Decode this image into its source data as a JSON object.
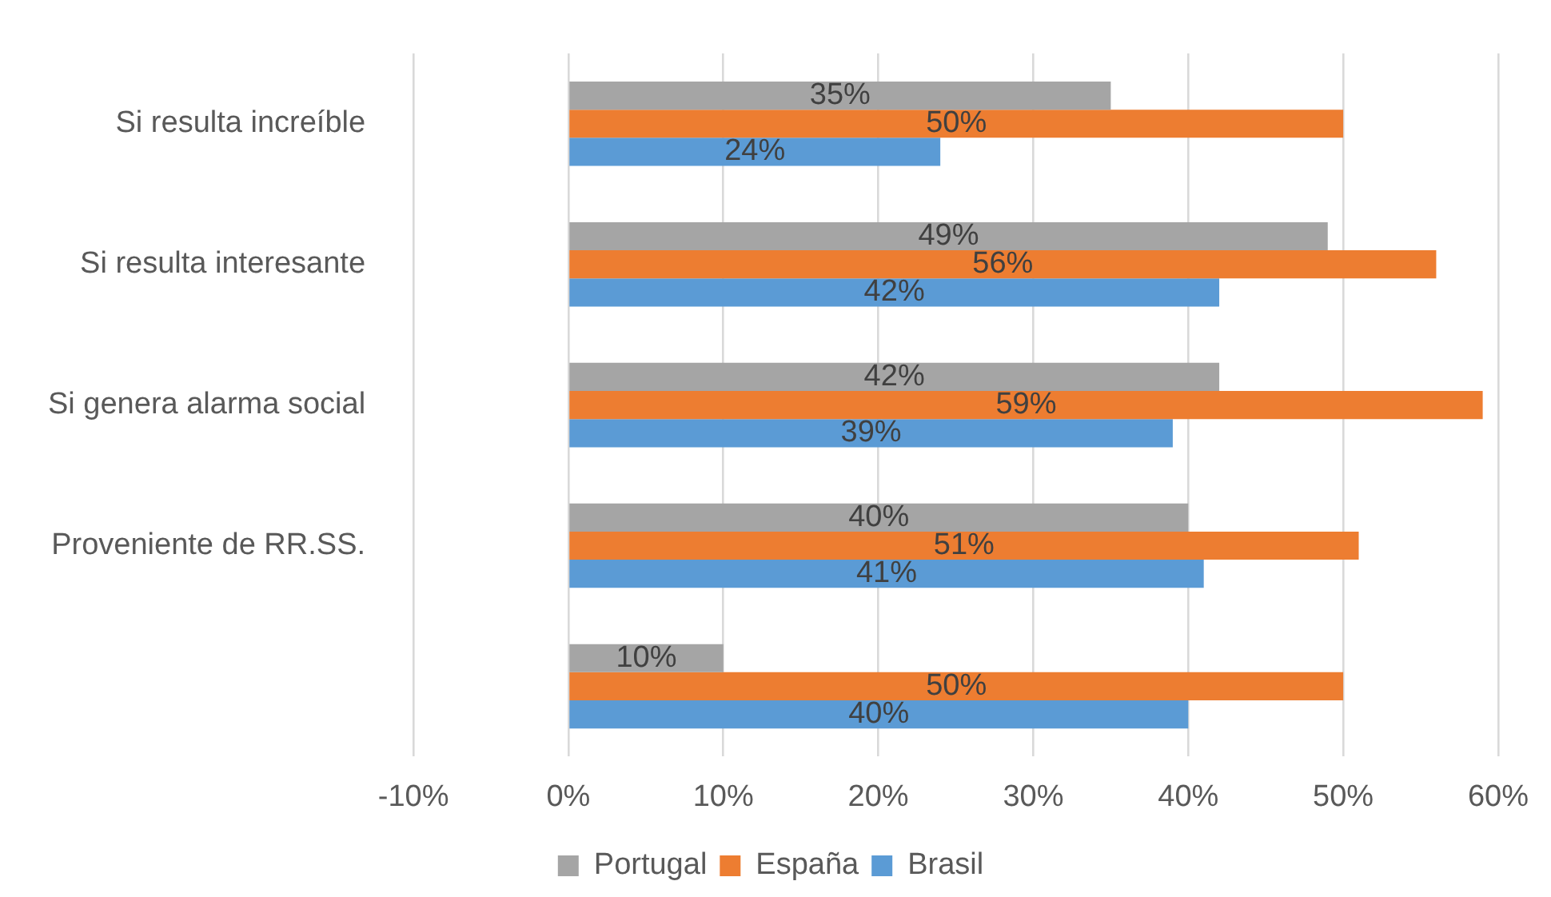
{
  "chart_data": {
    "type": "bar",
    "orientation": "horizontal",
    "categories": [
      "Si resulta increíble",
      "Si resulta interesante",
      "Si genera alarma social",
      "Proveniente de RR.SS.",
      null
    ],
    "series": [
      {
        "name": "Portugal",
        "color": "#a5a5a5",
        "values": [
          35,
          49,
          42,
          40,
          10
        ],
        "value_labels": [
          "35%",
          "49%",
          "42%",
          "40%",
          "10%"
        ]
      },
      {
        "name": "España",
        "color": "#ed7d31",
        "values": [
          50,
          56,
          59,
          51,
          50
        ],
        "value_labels": [
          "50%",
          "56%",
          "59%",
          "51%",
          "50%"
        ]
      },
      {
        "name": "Brasil",
        "color": "#5b9bd5",
        "values": [
          24,
          42,
          39,
          41,
          40
        ],
        "value_labels": [
          "24%",
          "42%",
          "39%",
          "41%",
          "40%"
        ]
      }
    ],
    "xlim": [
      -10,
      60
    ],
    "xticks": [
      {
        "value": -10,
        "label": "-10%"
      },
      {
        "value": 0,
        "label": "0%"
      },
      {
        "value": 10,
        "label": "10%"
      },
      {
        "value": 20,
        "label": "20%"
      },
      {
        "value": 30,
        "label": "30%"
      },
      {
        "value": 40,
        "label": "40%"
      },
      {
        "value": 50,
        "label": "50%"
      },
      {
        "value": 60,
        "label": "60%"
      }
    ],
    "grid": "x",
    "legend": "bottom"
  }
}
